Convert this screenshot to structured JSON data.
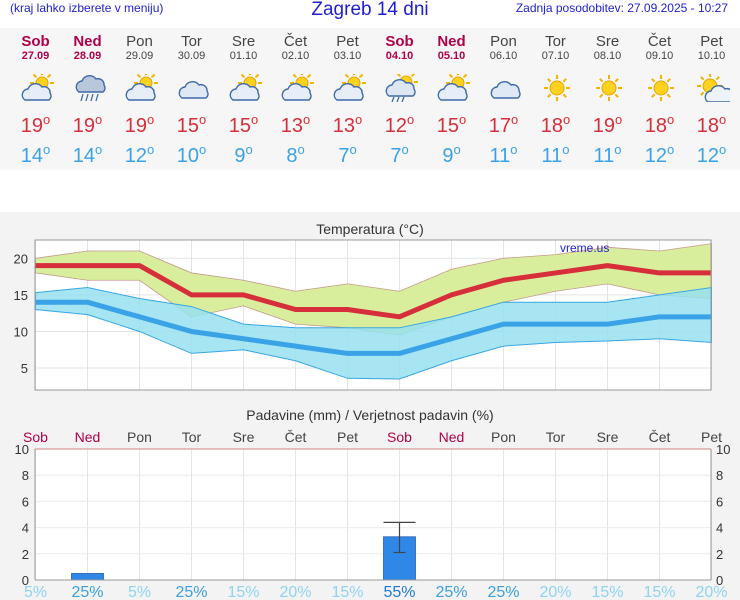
{
  "header": {
    "menu_hint": "(kraj lahko izberete v meniju)",
    "title": "Zagreb 14 dni",
    "updated": "Zadnja posodobitev: 27.09.2025 - 10:27"
  },
  "days": [
    {
      "name": "Sob",
      "date": "27.09",
      "weekend": true,
      "icon": "partly-cloudy-icon",
      "max": "19",
      "min": "14"
    },
    {
      "name": "Ned",
      "date": "28.09",
      "weekend": true,
      "icon": "rain-cloud-icon",
      "max": "19",
      "min": "14"
    },
    {
      "name": "Pon",
      "date": "29.09",
      "weekend": false,
      "icon": "partly-cloudy-icon",
      "max": "19",
      "min": "12"
    },
    {
      "name": "Tor",
      "date": "30.09",
      "weekend": false,
      "icon": "cloudy-icon",
      "max": "15",
      "min": "10"
    },
    {
      "name": "Sre",
      "date": "01.10",
      "weekend": false,
      "icon": "partly-cloudy-icon",
      "max": "15",
      "min": "9"
    },
    {
      "name": "Čet",
      "date": "02.10",
      "weekend": false,
      "icon": "partly-cloudy-icon",
      "max": "13",
      "min": "8"
    },
    {
      "name": "Pet",
      "date": "03.10",
      "weekend": false,
      "icon": "partly-cloudy-icon",
      "max": "13",
      "min": "7"
    },
    {
      "name": "Sob",
      "date": "04.10",
      "weekend": true,
      "icon": "sun-shower-icon",
      "max": "12",
      "min": "7"
    },
    {
      "name": "Ned",
      "date": "05.10",
      "weekend": true,
      "icon": "partly-cloudy-icon",
      "max": "15",
      "min": "9"
    },
    {
      "name": "Pon",
      "date": "06.10",
      "weekend": false,
      "icon": "cloudy-icon",
      "max": "17",
      "min": "11"
    },
    {
      "name": "Tor",
      "date": "07.10",
      "weekend": false,
      "icon": "sun-icon",
      "max": "18",
      "min": "11"
    },
    {
      "name": "Sre",
      "date": "08.10",
      "weekend": false,
      "icon": "sun-icon",
      "max": "19",
      "min": "11"
    },
    {
      "name": "Čet",
      "date": "09.10",
      "weekend": false,
      "icon": "sun-icon",
      "max": "18",
      "min": "12"
    },
    {
      "name": "Pet",
      "date": "10.10",
      "weekend": false,
      "icon": "mostly-sunny-icon",
      "max": "18",
      "min": "12"
    }
  ],
  "colors": {
    "max": "#d62e3a",
    "min": "#3aa2e6",
    "weekend": "#b0004a",
    "max_band": "#d8ee9c",
    "min_band": "#96e0ee",
    "overlap": "#8fd48a",
    "bar": "#2f88e8",
    "band_edge_max": "#c49a8a",
    "band_edge_min": "#38a6e6"
  },
  "chart_data": [
    {
      "type": "line",
      "title": "Temperatura (°C)",
      "watermark": "vreme.us",
      "categories": [
        "Sob",
        "Ned",
        "Pon",
        "Tor",
        "Sre",
        "Čet",
        "Pet",
        "Sob",
        "Ned",
        "Pon",
        "Tor",
        "Sre",
        "Čet",
        "Pet"
      ],
      "series": [
        {
          "name": "max",
          "values": [
            19,
            19,
            19,
            15,
            15,
            13,
            13,
            12,
            15,
            17,
            18,
            19,
            18,
            18
          ]
        },
        {
          "name": "min",
          "values": [
            14,
            14,
            12,
            10,
            9,
            8,
            7,
            7,
            9,
            11,
            11,
            11,
            12,
            12
          ]
        }
      ],
      "bands": [
        {
          "upper": [
            20,
            21,
            21,
            18,
            17,
            15.5,
            16.5,
            15.5,
            18.5,
            20,
            20.5,
            21.5,
            21,
            22
          ],
          "lower": [
            18,
            17,
            17,
            12,
            13.5,
            11,
            10.5,
            9.5,
            12,
            14,
            15.5,
            16.5,
            15,
            14.5
          ]
        },
        {
          "upper": [
            15.3,
            16,
            14.5,
            13.4,
            11,
            10.5,
            10.5,
            10.5,
            12,
            14,
            14,
            14,
            15,
            16
          ],
          "lower": [
            13,
            12.3,
            10,
            7,
            7.5,
            6,
            3.6,
            3.5,
            6,
            8,
            8.5,
            8.7,
            9,
            8.5
          ]
        }
      ],
      "yticks": [
        5,
        10,
        15,
        20
      ],
      "ylim": [
        2,
        22.5
      ],
      "grid": true
    },
    {
      "type": "bar",
      "title": "Padavine (mm) / Verjetnost padavin (%)",
      "categories": [
        "Sob",
        "Ned",
        "Pon",
        "Tor",
        "Sre",
        "Čet",
        "Pet",
        "Sob",
        "Ned",
        "Pon",
        "Tor",
        "Sre",
        "Čet",
        "Pet"
      ],
      "values": [
        0,
        0.5,
        0,
        0,
        0,
        0,
        0,
        3.3,
        0,
        0,
        0,
        0,
        0,
        0
      ],
      "error_upper": [
        null,
        null,
        null,
        null,
        null,
        null,
        null,
        4.4,
        null,
        null,
        null,
        null,
        null,
        null
      ],
      "error_lower": [
        null,
        null,
        null,
        null,
        null,
        null,
        null,
        2.1,
        null,
        null,
        null,
        null,
        null,
        null
      ],
      "probability": [
        "5%",
        "25%",
        "5%",
        "25%",
        "15%",
        "20%",
        "15%",
        "55%",
        "25%",
        "25%",
        "20%",
        "15%",
        "15%",
        "20%"
      ],
      "yticks": [
        0,
        2,
        4,
        6,
        8,
        10
      ],
      "ylim": [
        0,
        10
      ],
      "grid": true
    }
  ]
}
